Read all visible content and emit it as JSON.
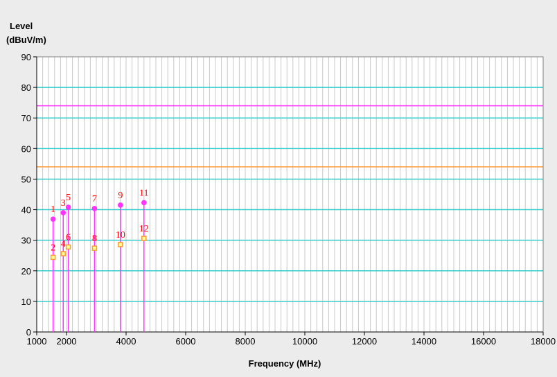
{
  "chart_data": {
    "type": "scatter",
    "title": "",
    "ylabel_line1": "Level",
    "ylabel_line2": "(dBuV/m)",
    "xlabel": "Frequency (MHz)",
    "xlim": [
      1000,
      18000
    ],
    "ylim": [
      0,
      90
    ],
    "x_ticks": [
      1000,
      2000,
      4000,
      6000,
      8000,
      10000,
      12000,
      14000,
      16000,
      18000
    ],
    "y_ticks": [
      0,
      10,
      20,
      30,
      40,
      50,
      60,
      70,
      80,
      90
    ],
    "x_minor_step": 200,
    "grid": true,
    "colors": {
      "background": "#ffffff",
      "page": "#ececec",
      "major_grid": "#33cccc",
      "minor_grid": "#c8c8c8",
      "peak": "#ff33ff",
      "average": "#ff9933",
      "marker_label": "#ff0000"
    },
    "limit_lines": [
      {
        "y": 74,
        "color": "#ff33ff"
      },
      {
        "y": 54,
        "color": "#ff9933"
      }
    ],
    "markers": [
      {
        "label": "1",
        "x": 1550,
        "y": 36.9,
        "kind": "peak"
      },
      {
        "label": "2",
        "x": 1550,
        "y": 24.4,
        "kind": "average"
      },
      {
        "label": "3",
        "x": 1890,
        "y": 39.0,
        "kind": "peak"
      },
      {
        "label": "4",
        "x": 1890,
        "y": 25.6,
        "kind": "average"
      },
      {
        "label": "5",
        "x": 2060,
        "y": 40.8,
        "kind": "peak"
      },
      {
        "label": "6",
        "x": 2060,
        "y": 27.8,
        "kind": "average"
      },
      {
        "label": "7",
        "x": 2940,
        "y": 40.4,
        "kind": "peak"
      },
      {
        "label": "8",
        "x": 2940,
        "y": 27.4,
        "kind": "average"
      },
      {
        "label": "9",
        "x": 3810,
        "y": 41.5,
        "kind": "peak"
      },
      {
        "label": "10",
        "x": 3810,
        "y": 28.6,
        "kind": "average"
      },
      {
        "label": "11",
        "x": 4600,
        "y": 42.3,
        "kind": "peak"
      },
      {
        "label": "12",
        "x": 4600,
        "y": 30.6,
        "kind": "average"
      }
    ]
  }
}
